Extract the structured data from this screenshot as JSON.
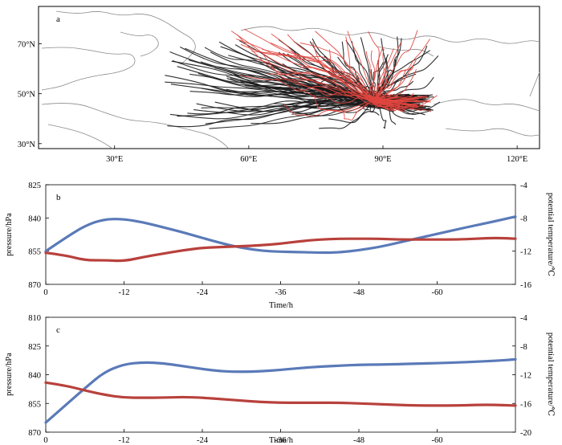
{
  "colors": {
    "pressure": "#5a7ab8",
    "potential_temperature": "#b8413c",
    "trajectory_group_1": "#1a1a1a",
    "trajectory_group_2": "#e0463f",
    "coastline": "#8a8a8a"
  },
  "chart_data": [
    {
      "panel": "a",
      "type": "line",
      "subtype": "trajectory map",
      "x_tick_labels": [
        "30°E",
        "60°E",
        "90°E",
        "120°E"
      ],
      "y_tick_labels": [
        "70°N",
        "50°N",
        "30°N"
      ],
      "xlim": [
        13,
        125
      ],
      "ylim": [
        28,
        85
      ],
      "series": [
        {
          "color": "#1a1a1a",
          "count": 110,
          "lon_range": [
            41,
            103
          ],
          "lat_range": [
            36,
            73
          ],
          "converge_lon": 88,
          "converge_lat": 47
        },
        {
          "color": "#e0463f",
          "count": 45,
          "lon_range": [
            56,
            103
          ],
          "lat_range": [
            42,
            76
          ],
          "converge_lon": 88,
          "converge_lat": 47
        }
      ]
    },
    {
      "panel": "b",
      "type": "line",
      "xlabel": "Time/h",
      "ylabel_left": "pressure/hPa",
      "ylabel_right": "potential temperature/℃",
      "x_tick_labels": [
        "0",
        "-12",
        "-24",
        "-36",
        "-48",
        "-60"
      ],
      "xlim": [
        0,
        -72
      ],
      "ylim_left": [
        870,
        825
      ],
      "y_left_ticks": [
        825,
        840,
        855,
        870
      ],
      "ylim_right": [
        -16,
        -4
      ],
      "y_right_ticks": [
        -4,
        -8,
        -12,
        -16
      ],
      "series": [
        {
          "axis": "left",
          "color": "#5a7ab8",
          "x": [
            0,
            -3,
            -6,
            -9,
            -12,
            -15,
            -18,
            -21,
            -24,
            -27,
            -30,
            -33,
            -36,
            -39,
            -42,
            -45,
            -48,
            -51,
            -54,
            -57,
            -60,
            -63,
            -66,
            -69,
            -72
          ],
          "y": [
            855,
            849,
            843.5,
            840.5,
            840.5,
            842,
            844.2,
            846.5,
            849,
            851.5,
            853.5,
            854.8,
            855.3,
            855.4,
            855.7,
            855.6,
            854.6,
            853.2,
            851.2,
            849.2,
            847.2,
            845.2,
            843.3,
            841.4,
            839.4
          ]
        },
        {
          "axis": "right",
          "color": "#b8413c",
          "x": [
            0,
            -3,
            -6,
            -9,
            -12,
            -15,
            -18,
            -21,
            -24,
            -27,
            -30,
            -33,
            -36,
            -39,
            -42,
            -45,
            -48,
            -51,
            -54,
            -57,
            -60,
            -63,
            -66,
            -69,
            -72
          ],
          "y": [
            -12.2,
            -12.5,
            -13.1,
            -13.1,
            -13.2,
            -12.7,
            -12.3,
            -11.9,
            -11.6,
            -11.5,
            -11.4,
            -11.3,
            -11.1,
            -10.8,
            -10.6,
            -10.5,
            -10.5,
            -10.5,
            -10.6,
            -10.6,
            -10.6,
            -10.6,
            -10.5,
            -10.4,
            -10.5
          ]
        }
      ]
    },
    {
      "panel": "c",
      "type": "line",
      "xlabel": "Time/h",
      "ylabel_left": "pressure/hPa",
      "ylabel_right": "potential temperature/℃",
      "x_tick_labels": [
        "0",
        "-12",
        "-24",
        "-36",
        "-48",
        "-60"
      ],
      "xlim": [
        0,
        -72
      ],
      "ylim_left": [
        870,
        810
      ],
      "y_left_ticks": [
        810,
        825,
        840,
        855,
        870
      ],
      "ylim_right": [
        -20,
        -4
      ],
      "y_right_ticks": [
        -4,
        -8,
        -12,
        -16,
        -20
      ],
      "series": [
        {
          "axis": "left",
          "color": "#5a7ab8",
          "x": [
            0,
            -3,
            -6,
            -9,
            -12,
            -15,
            -18,
            -21,
            -24,
            -27,
            -30,
            -33,
            -36,
            -39,
            -42,
            -45,
            -48,
            -51,
            -54,
            -57,
            -60,
            -63,
            -66,
            -69,
            -72
          ],
          "y": [
            865,
            856,
            847,
            838.5,
            834.5,
            833.5,
            834,
            835.5,
            837,
            838.3,
            838.5,
            838.2,
            837.5,
            836.5,
            835.8,
            835.3,
            834.8,
            834.7,
            834.5,
            834.2,
            834,
            833.6,
            833.2,
            832.7,
            832
          ]
        },
        {
          "axis": "right",
          "color": "#b8413c",
          "x": [
            0,
            -3,
            -6,
            -9,
            -12,
            -15,
            -18,
            -21,
            -24,
            -27,
            -30,
            -33,
            -36,
            -39,
            -42,
            -45,
            -48,
            -51,
            -54,
            -57,
            -60,
            -63,
            -66,
            -69,
            -72
          ],
          "y": [
            -13.1,
            -13.5,
            -14.2,
            -14.8,
            -15.2,
            -15.2,
            -15.2,
            -15.1,
            -15.2,
            -15.4,
            -15.6,
            -15.8,
            -15.9,
            -15.9,
            -15.9,
            -15.9,
            -16,
            -16.1,
            -16.2,
            -16.3,
            -16.3,
            -16.3,
            -16.2,
            -16.2,
            -16.3
          ]
        }
      ]
    }
  ]
}
